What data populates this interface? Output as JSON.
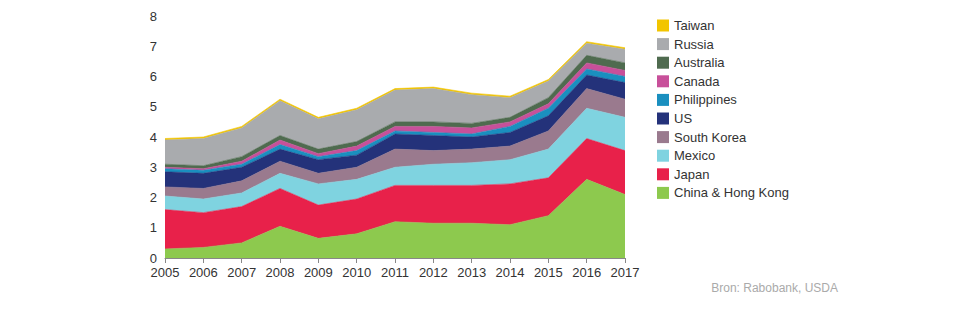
{
  "chart_data": {
    "type": "stacked_area",
    "stacked": true,
    "grid": false,
    "legend": "right",
    "source": "Bron: Rabobank, USDA",
    "categories": [
      "2005",
      "2006",
      "2007",
      "2008",
      "2009",
      "2010",
      "2011",
      "2012",
      "2013",
      "2014",
      "2015",
      "2016",
      "2017"
    ],
    "ylim": [
      0,
      8
    ],
    "yticks": [
      0,
      1,
      2,
      3,
      4,
      5,
      6,
      7,
      8
    ],
    "series": [
      {
        "name": "China & Hong Kong",
        "color": "#8dc94e",
        "values": [
          0.3,
          0.35,
          0.5,
          1.05,
          0.65,
          0.8,
          1.2,
          1.15,
          1.15,
          1.1,
          1.4,
          2.6,
          2.1
        ]
      },
      {
        "name": "Japan",
        "color": "#e8214a",
        "values": [
          1.3,
          1.15,
          1.2,
          1.25,
          1.1,
          1.15,
          1.2,
          1.25,
          1.25,
          1.35,
          1.25,
          1.35,
          1.45
        ]
      },
      {
        "name": "Mexico",
        "color": "#7fd3e0",
        "values": [
          0.45,
          0.45,
          0.45,
          0.5,
          0.7,
          0.65,
          0.6,
          0.7,
          0.75,
          0.8,
          0.95,
          1.0,
          1.1
        ]
      },
      {
        "name": "South Korea",
        "color": "#9a7a8e",
        "values": [
          0.3,
          0.35,
          0.4,
          0.4,
          0.35,
          0.4,
          0.6,
          0.45,
          0.45,
          0.45,
          0.6,
          0.65,
          0.6
        ]
      },
      {
        "name": "US",
        "color": "#24327a",
        "values": [
          0.5,
          0.5,
          0.45,
          0.4,
          0.45,
          0.4,
          0.5,
          0.5,
          0.4,
          0.45,
          0.5,
          0.45,
          0.55
        ]
      },
      {
        "name": "Philippines",
        "color": "#1a8fbf",
        "values": [
          0.1,
          0.1,
          0.1,
          0.15,
          0.1,
          0.15,
          0.1,
          0.1,
          0.1,
          0.2,
          0.25,
          0.2,
          0.2
        ]
      },
      {
        "name": "Canada",
        "color": "#c8509a",
        "values": [
          0.05,
          0.05,
          0.1,
          0.15,
          0.1,
          0.15,
          0.15,
          0.2,
          0.2,
          0.15,
          0.15,
          0.2,
          0.2
        ]
      },
      {
        "name": "Australia",
        "color": "#4f6b4f",
        "values": [
          0.1,
          0.1,
          0.15,
          0.15,
          0.15,
          0.15,
          0.15,
          0.15,
          0.15,
          0.15,
          0.2,
          0.25,
          0.25
        ]
      },
      {
        "name": "Russia",
        "color": "#a9abae",
        "values": [
          0.8,
          0.9,
          0.95,
          1.15,
          1.0,
          1.05,
          1.05,
          1.1,
          0.95,
          0.65,
          0.55,
          0.4,
          0.45
        ]
      },
      {
        "name": "Taiwan",
        "color": "#f2c500",
        "values": [
          0.05,
          0.05,
          0.05,
          0.05,
          0.05,
          0.05,
          0.05,
          0.05,
          0.05,
          0.05,
          0.05,
          0.05,
          0.05
        ]
      }
    ]
  }
}
